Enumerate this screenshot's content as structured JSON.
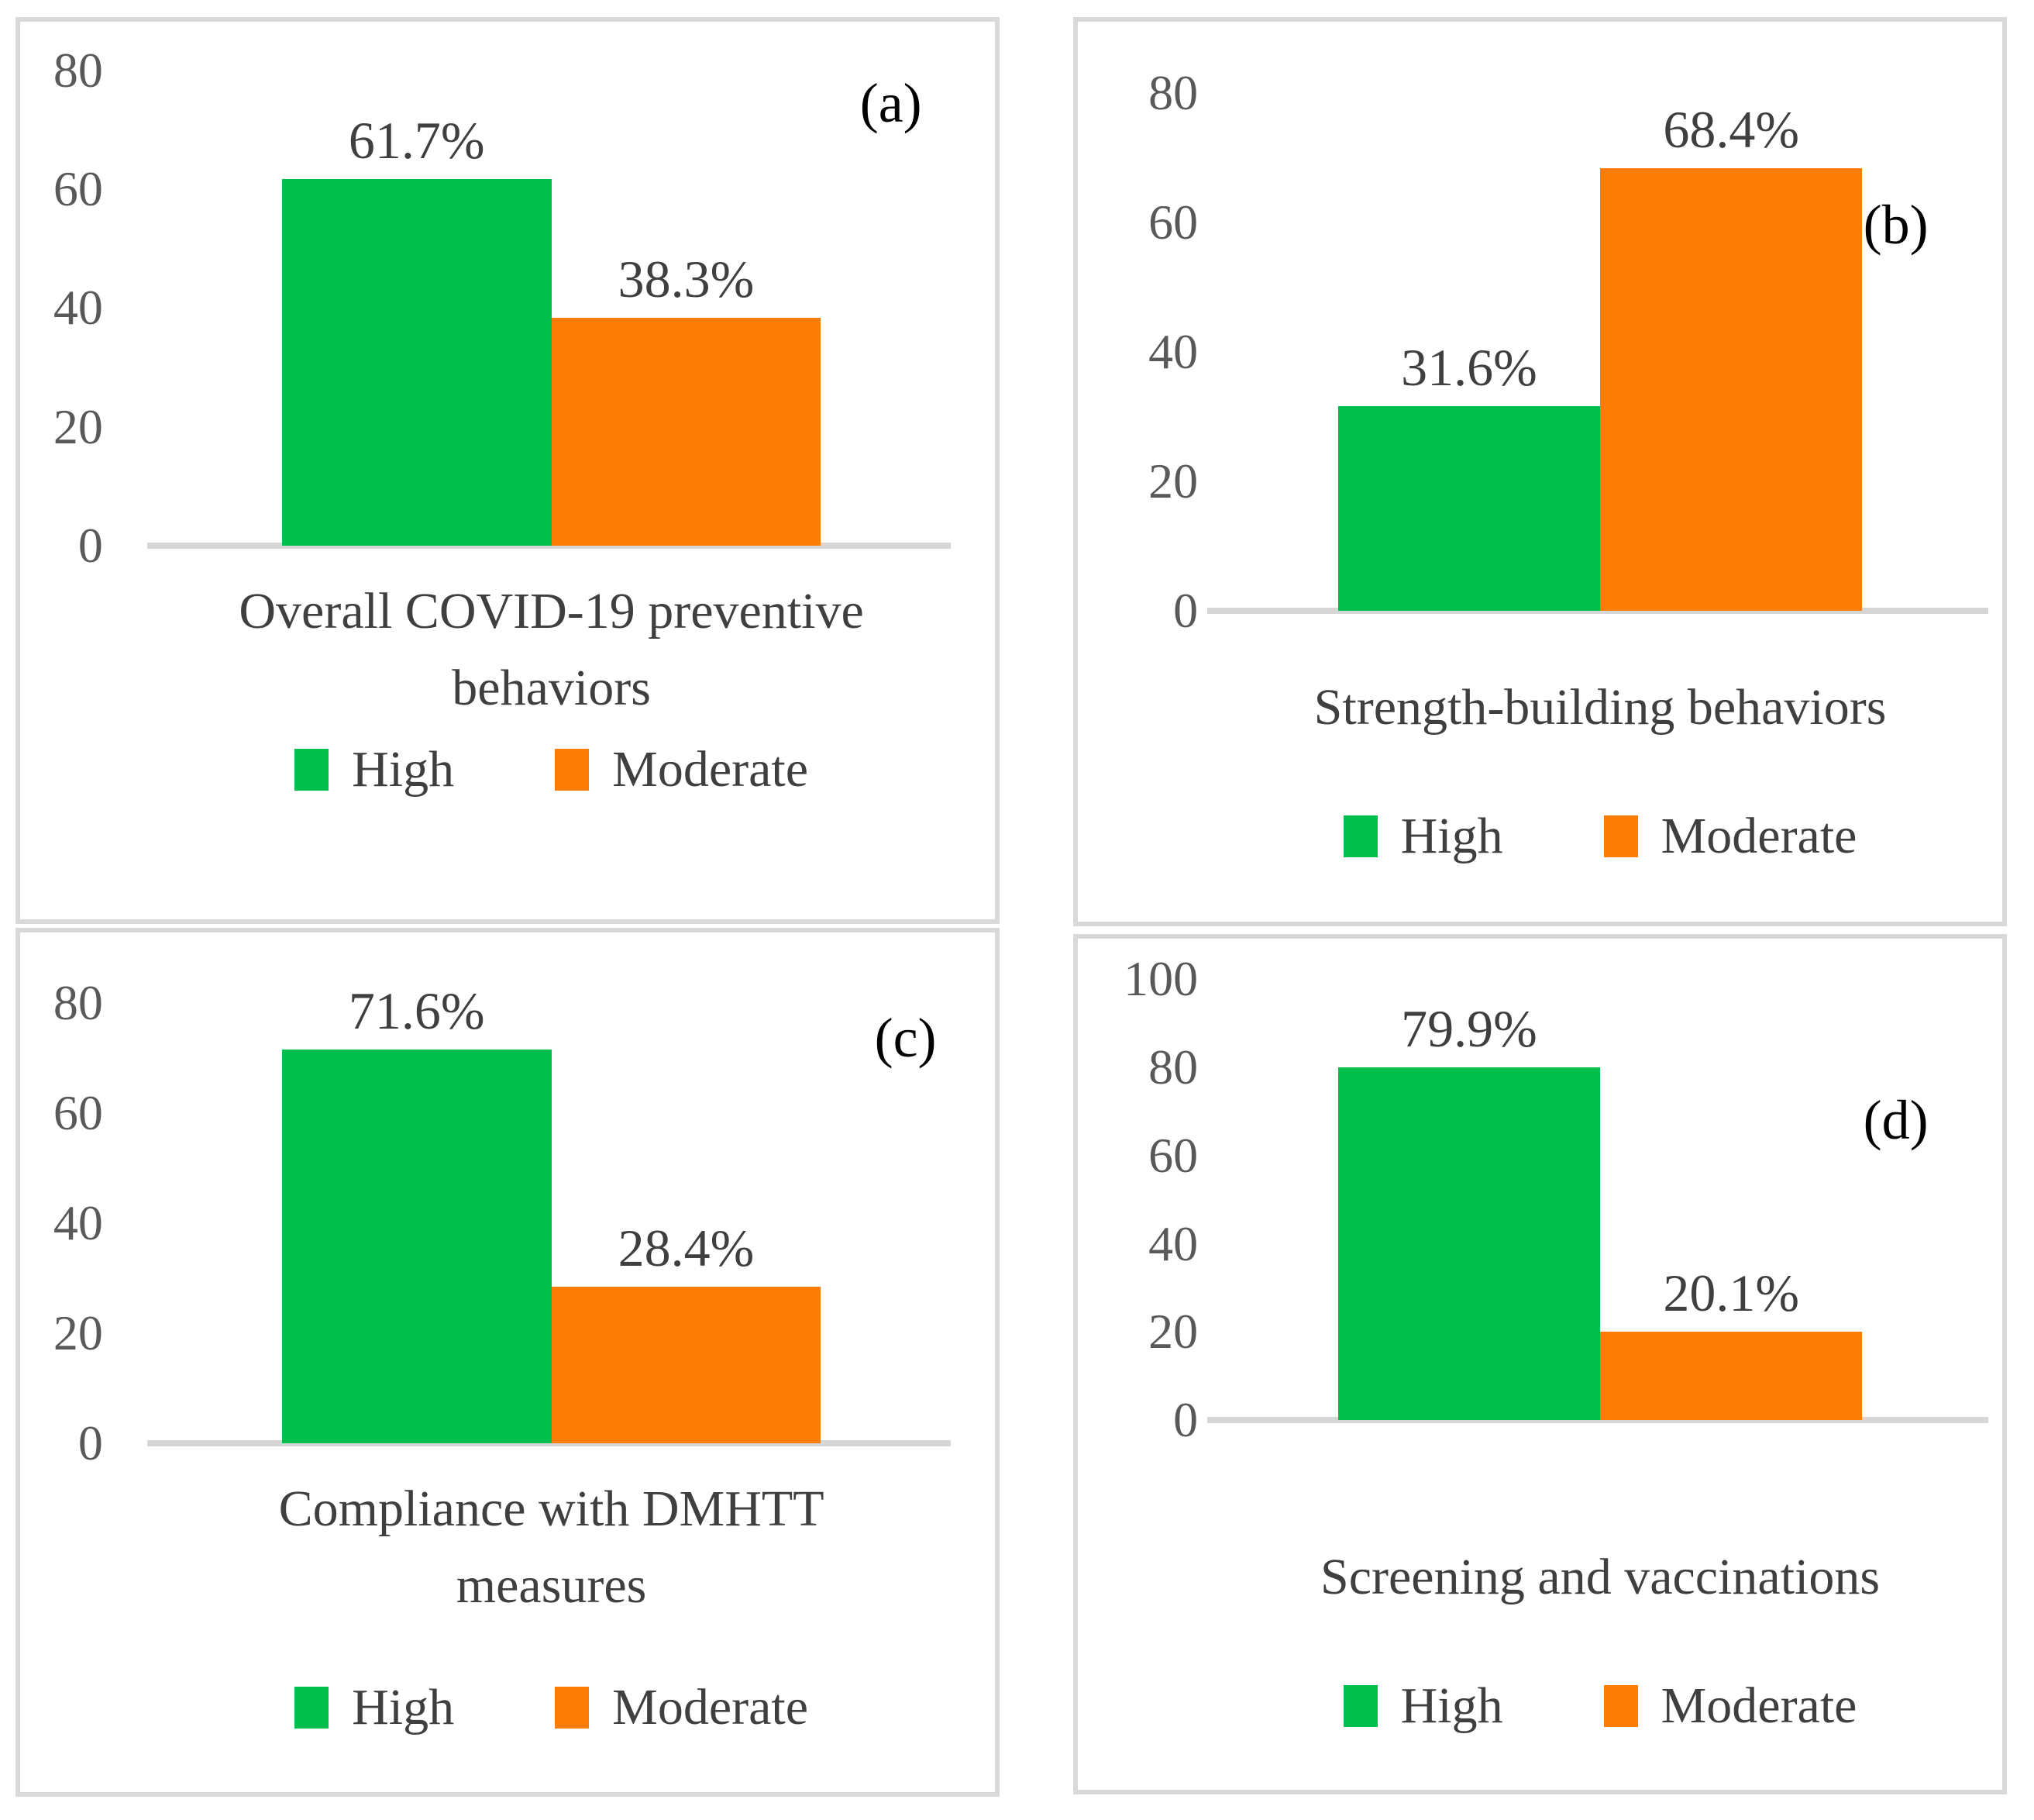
{
  "figure": {
    "description": "Four-panel bar chart figure showing levels of COVID-19 preventive behaviors",
    "panel_letters": [
      "(a)",
      "(b)",
      "(c)",
      "(d)"
    ]
  },
  "colors": {
    "high": "#00bf4d",
    "moderate": "#fb7d05",
    "axis_line": "#d6d6d6",
    "panel_border": "#d9d9d9",
    "tick_text": "#595959",
    "label_text": "#3f3f3f"
  },
  "chart_data": [
    {
      "type": "bar",
      "panel_label": "(a)",
      "title": "Overall COVID-19 preventive behaviors",
      "ylim": [
        0,
        80
      ],
      "yticks": [
        80,
        60,
        40,
        20,
        0
      ],
      "grid": false,
      "legend_position": "bottom",
      "legend": [
        "High",
        "Moderate"
      ],
      "series": [
        {
          "name": "High",
          "value": 61.7,
          "label": "61.7%"
        },
        {
          "name": "Moderate",
          "value": 38.3,
          "label": "38.3%"
        }
      ]
    },
    {
      "type": "bar",
      "panel_label": "(b)",
      "title": "Strength-building behaviors",
      "ylim": [
        0,
        80
      ],
      "yticks": [
        80,
        60,
        40,
        20,
        0
      ],
      "grid": false,
      "legend_position": "bottom",
      "legend": [
        "High",
        "Moderate"
      ],
      "series": [
        {
          "name": "High",
          "value": 31.6,
          "label": "31.6%"
        },
        {
          "name": "Moderate",
          "value": 68.4,
          "label": "68.4%"
        }
      ]
    },
    {
      "type": "bar",
      "panel_label": "(c)",
      "title": "Compliance with DMHTT measures",
      "ylim": [
        0,
        80
      ],
      "yticks": [
        80,
        60,
        40,
        20,
        0
      ],
      "grid": false,
      "legend_position": "bottom",
      "legend": [
        "High",
        "Moderate"
      ],
      "series": [
        {
          "name": "High",
          "value": 71.6,
          "label": "71.6%"
        },
        {
          "name": "Moderate",
          "value": 28.4,
          "label": "28.4%"
        }
      ]
    },
    {
      "type": "bar",
      "panel_label": "(d)",
      "title": "Screening and vaccinations",
      "ylim": [
        0,
        100
      ],
      "yticks": [
        100,
        80,
        60,
        40,
        20,
        0
      ],
      "grid": false,
      "legend_position": "bottom",
      "legend": [
        "High",
        "Moderate"
      ],
      "series": [
        {
          "name": "High",
          "value": 79.9,
          "label": "79.9%"
        },
        {
          "name": "Moderate",
          "value": 20.1,
          "label": "20.1%"
        }
      ]
    }
  ]
}
